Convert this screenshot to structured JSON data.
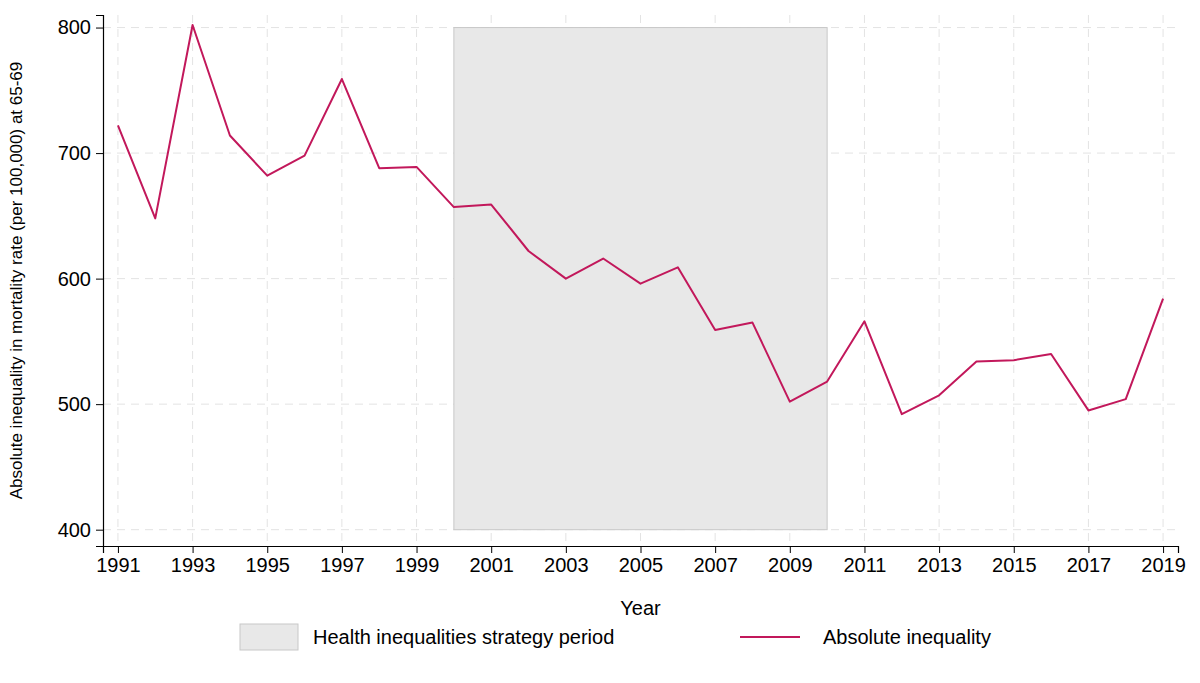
{
  "chart_data": {
    "type": "line",
    "x_label": "Year",
    "y_label": "Absolute inequality in mortality rate (per 100,000) at 65-69",
    "x": [
      1991,
      1992,
      1993,
      1994,
      1995,
      1996,
      1997,
      1998,
      1999,
      2000,
      2001,
      2002,
      2003,
      2004,
      2005,
      2006,
      2007,
      2008,
      2009,
      2010,
      2011,
      2012,
      2013,
      2014,
      2015,
      2016,
      2017,
      2018,
      2019
    ],
    "series": [
      {
        "name": "Absolute inequality",
        "color": "#c2185b",
        "values": [
          722,
          648,
          802,
          714,
          682,
          698,
          759,
          688,
          689,
          657,
          659,
          622,
          600,
          616,
          596,
          609,
          559,
          565,
          502,
          518,
          566,
          492,
          507,
          534,
          535,
          540,
          495,
          504,
          584
        ]
      }
    ],
    "bands": [
      {
        "name": "Health inequalities strategy period",
        "x": [
          2000,
          2010
        ],
        "y": [
          400,
          800
        ],
        "color": "#e8e8e8"
      }
    ],
    "xlim": [
      1990.6,
      2019.4
    ],
    "ylim": [
      387,
      810
    ],
    "xticks": [
      1991,
      1993,
      1995,
      1997,
      1999,
      2001,
      2003,
      2005,
      2007,
      2009,
      2011,
      2013,
      2015,
      2017,
      2019
    ],
    "yticks": [
      400,
      500,
      600,
      700,
      800
    ],
    "grid": true,
    "legend": "bottom"
  }
}
